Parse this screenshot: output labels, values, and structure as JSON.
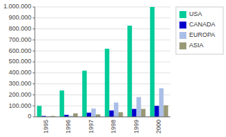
{
  "chart_data": {
    "type": "bar",
    "categories": [
      "1995",
      "1996",
      "1997",
      "1998",
      "1999",
      "2000"
    ],
    "series": [
      {
        "name": "USA",
        "color": "#00cc99",
        "values": [
          100000,
          240000,
          420000,
          620000,
          830000,
          1000000
        ]
      },
      {
        "name": "CANADA",
        "color": "#0000cc",
        "values": [
          8000,
          18000,
          38000,
          58000,
          72000,
          100000
        ]
      },
      {
        "name": "EUROPA",
        "color": "#aabfe8",
        "values": [
          5000,
          10000,
          75000,
          130000,
          180000,
          260000
        ]
      },
      {
        "name": "ASIA",
        "color": "#999977",
        "values": [
          8000,
          32000,
          22000,
          42000,
          72000,
          105000
        ]
      }
    ],
    "ylim": [
      0,
      1000000
    ],
    "yticks": [
      0,
      {
        "value": 100000,
        "label": "100.000"
      },
      {
        "value": 200000,
        "label": "200.000"
      },
      {
        "value": 300000,
        "label": "300.000"
      },
      {
        "value": 400000,
        "label": "400.000"
      },
      {
        "value": 500000,
        "label": "500.000"
      },
      {
        "value": 600000,
        "label": "600.000"
      },
      {
        "value": 700000,
        "label": "700.000"
      },
      {
        "value": 800000,
        "label": "800.000"
      },
      {
        "value": 900000,
        "label": "900.000"
      },
      {
        "value": 1000000,
        "label": "1.000.000"
      }
    ],
    "grid": true,
    "legend": "right"
  }
}
